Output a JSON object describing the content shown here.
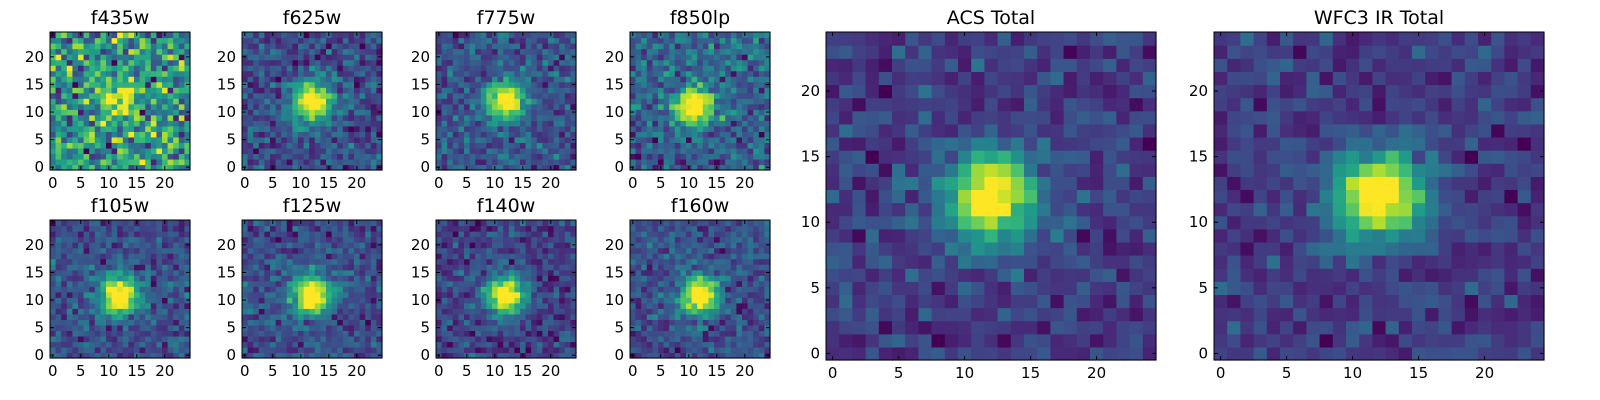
{
  "chart_data": [
    {
      "type": "heatmap",
      "title": "f435w",
      "xticks": [
        0,
        5,
        10,
        15,
        20
      ],
      "yticks": [
        0,
        5,
        10,
        15,
        20
      ],
      "xlim": [
        -0.5,
        24.5
      ],
      "ylim": [
        -0.5,
        24.5
      ],
      "grid": 25,
      "source_center": [
        12,
        12
      ],
      "source_peak": 0.4,
      "noise": 0.75,
      "colormap": "viridis",
      "axis_labels": true
    },
    {
      "type": "heatmap",
      "title": "f625w",
      "xticks": [
        0,
        5,
        10,
        15,
        20
      ],
      "yticks": [
        0,
        5,
        10,
        15,
        20
      ],
      "xlim": [
        -0.5,
        24.5
      ],
      "ylim": [
        -0.5,
        24.5
      ],
      "grid": 25,
      "source_center": [
        12,
        12
      ],
      "source_peak": 1.0,
      "noise": 0.45,
      "colormap": "viridis",
      "axis_labels": true
    },
    {
      "type": "heatmap",
      "title": "f775w",
      "xticks": [
        0,
        5,
        10,
        15,
        20
      ],
      "yticks": [
        0,
        5,
        10,
        15,
        20
      ],
      "xlim": [
        -0.5,
        24.5
      ],
      "ylim": [
        -0.5,
        24.5
      ],
      "grid": 25,
      "source_center": [
        12,
        12
      ],
      "source_peak": 1.0,
      "noise": 0.45,
      "colormap": "viridis",
      "axis_labels": true
    },
    {
      "type": "heatmap",
      "title": "f850lp",
      "xticks": [
        0,
        5,
        10,
        15,
        20
      ],
      "yticks": [
        0,
        5,
        10,
        15,
        20
      ],
      "xlim": [
        -0.5,
        24.5
      ],
      "ylim": [
        -0.5,
        24.5
      ],
      "grid": 25,
      "source_center": [
        11,
        11
      ],
      "source_peak": 0.9,
      "noise": 0.55,
      "colormap": "viridis",
      "axis_labels": true
    },
    {
      "type": "heatmap",
      "title": "f105w",
      "xticks": [
        0,
        5,
        10,
        15,
        20
      ],
      "yticks": [
        0,
        5,
        10,
        15,
        20
      ],
      "xlim": [
        -0.5,
        24.5
      ],
      "ylim": [
        -0.5,
        24.5
      ],
      "grid": 25,
      "source_center": [
        12,
        11
      ],
      "source_peak": 1.0,
      "noise": 0.4,
      "colormap": "viridis",
      "axis_labels": true
    },
    {
      "type": "heatmap",
      "title": "f125w",
      "xticks": [
        0,
        5,
        10,
        15,
        20
      ],
      "yticks": [
        0,
        5,
        10,
        15,
        20
      ],
      "xlim": [
        -0.5,
        24.5
      ],
      "ylim": [
        -0.5,
        24.5
      ],
      "grid": 25,
      "source_center": [
        12,
        11
      ],
      "source_peak": 1.0,
      "noise": 0.4,
      "colormap": "viridis",
      "axis_labels": true
    },
    {
      "type": "heatmap",
      "title": "f140w",
      "xticks": [
        0,
        5,
        10,
        15,
        20
      ],
      "yticks": [
        0,
        5,
        10,
        15,
        20
      ],
      "xlim": [
        -0.5,
        24.5
      ],
      "ylim": [
        -0.5,
        24.5
      ],
      "grid": 25,
      "source_center": [
        12,
        11
      ],
      "source_peak": 1.0,
      "noise": 0.38,
      "colormap": "viridis",
      "axis_labels": true
    },
    {
      "type": "heatmap",
      "title": "f160w",
      "xticks": [
        0,
        5,
        10,
        15,
        20
      ],
      "yticks": [
        0,
        5,
        10,
        15,
        20
      ],
      "xlim": [
        -0.5,
        24.5
      ],
      "ylim": [
        -0.5,
        24.5
      ],
      "grid": 25,
      "source_center": [
        12,
        11
      ],
      "source_peak": 1.0,
      "noise": 0.42,
      "colormap": "viridis",
      "axis_labels": true
    },
    {
      "type": "heatmap",
      "title": "ACS Total",
      "xticks": [
        0,
        5,
        10,
        15,
        20
      ],
      "yticks": [
        0,
        5,
        10,
        15,
        20
      ],
      "xlim": [
        -0.5,
        24.5
      ],
      "ylim": [
        -0.5,
        24.5
      ],
      "grid": 25,
      "source_center": [
        12,
        12
      ],
      "source_peak": 1.0,
      "noise": 0.35,
      "colormap": "viridis",
      "axis_labels": true
    },
    {
      "type": "heatmap",
      "title": "WFC3 IR Total",
      "xticks": [
        0,
        5,
        10,
        15,
        20
      ],
      "yticks": [
        0,
        5,
        10,
        15,
        20
      ],
      "xlim": [
        -0.5,
        24.5
      ],
      "ylim": [
        -0.5,
        24.5
      ],
      "grid": 25,
      "source_center": [
        12,
        12
      ],
      "source_peak": 1.0,
      "noise": 0.3,
      "colormap": "viridis",
      "axis_labels": true
    }
  ]
}
